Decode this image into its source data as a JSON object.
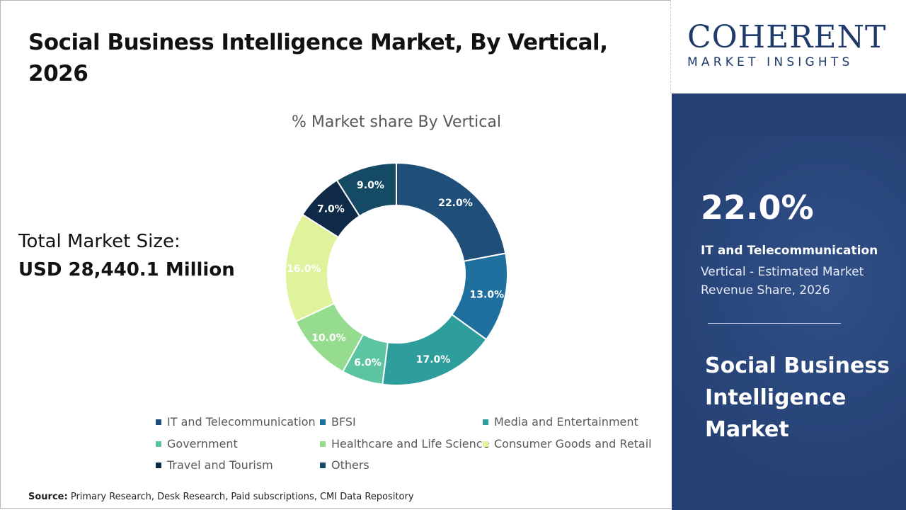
{
  "title": "Social Business Intelligence Market, By Vertical, 2026",
  "subtitle": "% Market share By Vertical",
  "total": {
    "label": "Total Market Size:",
    "value": "USD 28,440.1 Million"
  },
  "source": {
    "label": "Source:",
    "text": "Primary Research, Desk Research, Paid subscriptions, CMI Data Repository"
  },
  "logo": {
    "top": "COHERENT",
    "bottom": "MARKET INSIGHTS"
  },
  "highlight": {
    "percent": "22.0%",
    "segment": "IT and Telecommunication",
    "description": "Vertical - Estimated Market Revenue Share, 2026",
    "market": "Social Business Intelligence Market"
  },
  "colors": {
    "side_panel": "#243f73",
    "logo": "#1f3a6b"
  },
  "chart_data": {
    "type": "pie",
    "donut": true,
    "title": "% Market share By Vertical",
    "legend_position": "bottom",
    "categories": [
      "IT and Telecommunication",
      "BFSI",
      "Media and Entertainment",
      "Government",
      "Healthcare and Life Science",
      "Consumer Goods and Retail",
      "Travel and Tourism",
      "Others"
    ],
    "values": [
      22.0,
      13.0,
      17.0,
      6.0,
      10.0,
      16.0,
      7.0,
      9.0
    ],
    "labels": [
      "22.0%",
      "13.0%",
      "17.0%",
      "6.0%",
      "10.0%",
      "16.0%",
      "7.0%",
      "9.0%"
    ],
    "colors": [
      "#1f4e79",
      "#1f6f9f",
      "#2e9e9c",
      "#5cc4a0",
      "#95dc8e",
      "#dff29c",
      "#0e2a47",
      "#144a63"
    ],
    "legend_colors": [
      "#1f4e79",
      "#1f6f9f",
      "#2e9e9c",
      "#5cc4a0",
      "#95dc8e",
      "#dff29c",
      "#0e2a47",
      "#144a63"
    ],
    "label_colors": [
      "#ffffff",
      "#ffffff",
      "#ffffff",
      "#ffffff",
      "#ffffff",
      "#ffffff",
      "#ffffff",
      "#ffffff"
    ]
  }
}
